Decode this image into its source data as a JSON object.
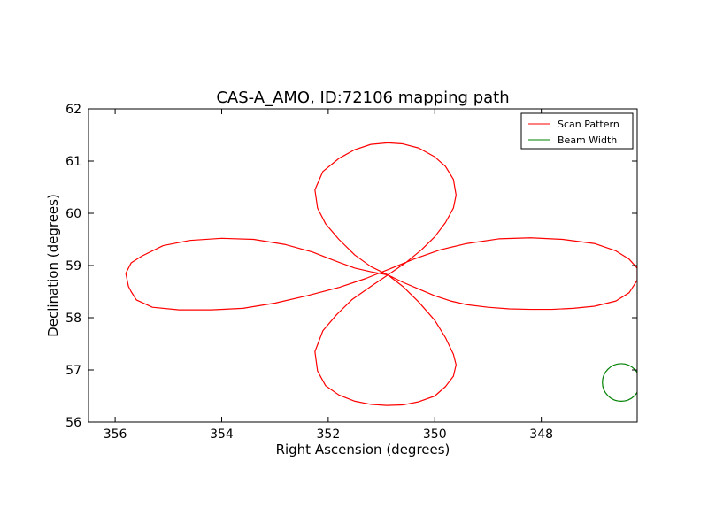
{
  "chart_data": {
    "type": "line",
    "title": "CAS-A_AMO, ID:72106 mapping path",
    "xlabel": "Right Ascension (degrees)",
    "ylabel": "Declination (degrees)",
    "xlim": [
      356.5,
      346.2
    ],
    "ylim": [
      56,
      62
    ],
    "x_reversed": true,
    "xticks": [
      356,
      354,
      352,
      350,
      348
    ],
    "yticks": [
      56,
      57,
      58,
      59,
      60,
      61,
      62
    ],
    "grid": false,
    "legend_position": "top-right",
    "series": [
      {
        "name": "Scan Pattern",
        "color": "#ff0000",
        "style": "line",
        "x": [
          350.88,
          350.6,
          350.3,
          350.0,
          349.7,
          349.4,
          349.0,
          348.6,
          348.2,
          347.8,
          347.4,
          347.0,
          346.6,
          346.35,
          346.2,
          346.2,
          346.35,
          346.6,
          347.0,
          347.6,
          348.2,
          348.8,
          349.4,
          349.9,
          350.4,
          350.88,
          351.3,
          351.8,
          352.4,
          353.0,
          353.6,
          354.2,
          354.8,
          355.3,
          355.6,
          355.7,
          355.75,
          355.8,
          355.7,
          355.5,
          355.1,
          354.6,
          354.0,
          353.4,
          352.8,
          352.3,
          351.9,
          351.5,
          351.2,
          350.88,
          350.6,
          350.3,
          350.0,
          349.8,
          349.65,
          349.6,
          349.65,
          349.8,
          350.0,
          350.3,
          350.6,
          350.9,
          351.2,
          351.5,
          351.8,
          352.05,
          352.2,
          352.25,
          352.1,
          351.85,
          351.55,
          351.2,
          350.88,
          350.55,
          350.25,
          350.0,
          349.8,
          349.65,
          349.6,
          349.65,
          349.8,
          350.0,
          350.3,
          350.6,
          350.88,
          351.2,
          351.5,
          351.8,
          352.1,
          352.25,
          352.2,
          352.05,
          351.8,
          351.5,
          351.2,
          350.88
        ],
        "y": [
          58.82,
          58.68,
          58.55,
          58.42,
          58.32,
          58.25,
          58.2,
          58.17,
          58.16,
          58.16,
          58.18,
          58.22,
          58.32,
          58.48,
          58.72,
          58.95,
          59.12,
          59.28,
          59.42,
          59.5,
          59.53,
          59.51,
          59.42,
          59.3,
          59.12,
          58.92,
          58.75,
          58.58,
          58.42,
          58.28,
          58.18,
          58.15,
          58.15,
          58.2,
          58.34,
          58.5,
          58.6,
          58.85,
          59.05,
          59.18,
          59.38,
          59.48,
          59.52,
          59.5,
          59.4,
          59.26,
          59.1,
          58.95,
          58.88,
          58.82,
          58.6,
          58.3,
          57.95,
          57.62,
          57.3,
          57.1,
          56.88,
          56.68,
          56.5,
          56.39,
          56.33,
          56.32,
          56.34,
          56.4,
          56.52,
          56.7,
          56.98,
          57.35,
          57.75,
          58.05,
          58.35,
          58.6,
          58.82,
          59.05,
          59.3,
          59.55,
          59.82,
          60.1,
          60.35,
          60.65,
          60.9,
          61.08,
          61.25,
          61.33,
          61.35,
          61.32,
          61.22,
          61.05,
          60.8,
          60.45,
          60.1,
          59.8,
          59.5,
          59.2,
          58.98,
          58.82
        ]
      },
      {
        "name": "Beam Width",
        "color": "#008000",
        "style": "circle",
        "center": [
          346.5,
          56.76
        ],
        "radius": 0.36
      }
    ]
  }
}
